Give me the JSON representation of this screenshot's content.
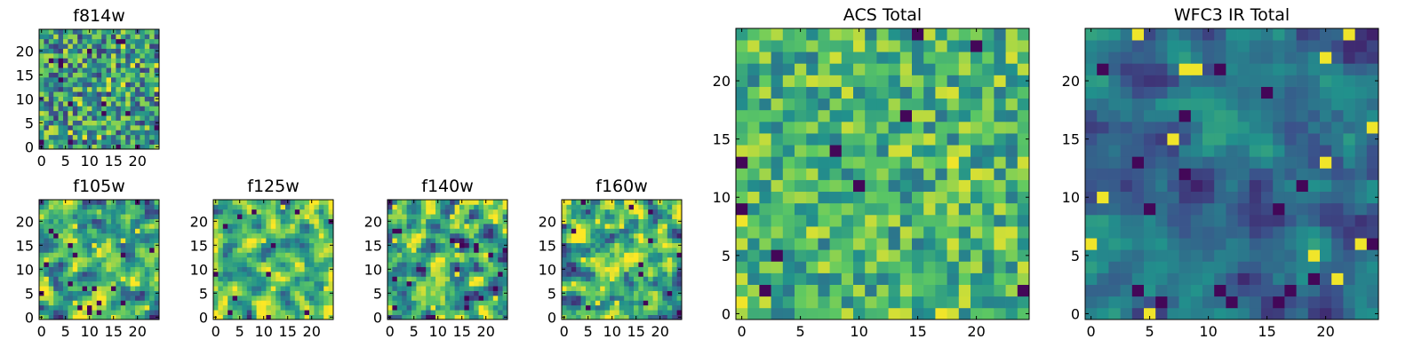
{
  "figure": {
    "colormap": "viridis",
    "colors": [
      "#440154",
      "#3b528b",
      "#21918c",
      "#5ec962",
      "#fde725"
    ]
  },
  "chart_data": [
    {
      "type": "heatmap",
      "title": "f814w",
      "grid": [
        25,
        25
      ],
      "xticks": [
        0,
        5,
        10,
        15,
        20
      ],
      "yticks": [
        0,
        5,
        10,
        15,
        20
      ],
      "xlim": [
        0,
        25
      ],
      "ylim": [
        0,
        25
      ],
      "seed": 11,
      "smooth": 0,
      "level": 0.55,
      "spread": 0.22
    },
    {
      "type": "heatmap",
      "title": "f105w",
      "grid": [
        25,
        25
      ],
      "xticks": [
        0,
        5,
        10,
        15,
        20
      ],
      "yticks": [
        0,
        5,
        10,
        15,
        20
      ],
      "xlim": [
        0,
        25
      ],
      "ylim": [
        0,
        25
      ],
      "seed": 23,
      "smooth": 1,
      "level": 0.62,
      "spread": 0.2
    },
    {
      "type": "heatmap",
      "title": "f125w",
      "grid": [
        25,
        25
      ],
      "xticks": [
        0,
        5,
        10,
        15,
        20
      ],
      "yticks": [
        0,
        5,
        10,
        15,
        20
      ],
      "xlim": [
        0,
        25
      ],
      "ylim": [
        0,
        25
      ],
      "seed": 37,
      "smooth": 1,
      "level": 0.68,
      "spread": 0.18
    },
    {
      "type": "heatmap",
      "title": "f140w",
      "grid": [
        25,
        25
      ],
      "xticks": [
        0,
        5,
        10,
        15,
        20
      ],
      "yticks": [
        0,
        5,
        10,
        15,
        20
      ],
      "xlim": [
        0,
        25
      ],
      "ylim": [
        0,
        25
      ],
      "seed": 41,
      "smooth": 1,
      "level": 0.6,
      "spread": 0.22
    },
    {
      "type": "heatmap",
      "title": "f160w",
      "grid": [
        25,
        25
      ],
      "xticks": [
        0,
        5,
        10,
        15,
        20
      ],
      "yticks": [
        0,
        5,
        10,
        15,
        20
      ],
      "xlim": [
        0,
        25
      ],
      "ylim": [
        0,
        25
      ],
      "seed": 53,
      "smooth": 1,
      "level": 0.64,
      "spread": 0.22
    },
    {
      "type": "heatmap",
      "title": "ACS Total",
      "grid": [
        25,
        25
      ],
      "xticks": [
        0,
        5,
        10,
        15,
        20
      ],
      "yticks": [
        0,
        5,
        10,
        15,
        20
      ],
      "xlim": [
        0,
        25
      ],
      "ylim": [
        0,
        25
      ],
      "seed": 67,
      "smooth": 0,
      "level": 0.66,
      "spread": 0.16
    },
    {
      "type": "heatmap",
      "title": "WFC3 IR Total",
      "grid": [
        25,
        25
      ],
      "xticks": [
        0,
        5,
        10,
        15,
        20
      ],
      "yticks": [
        0,
        5,
        10,
        15,
        20
      ],
      "xlim": [
        0,
        25
      ],
      "ylim": [
        0,
        25
      ],
      "seed": 79,
      "smooth": 1,
      "level": 0.36,
      "spread": 0.1
    }
  ]
}
